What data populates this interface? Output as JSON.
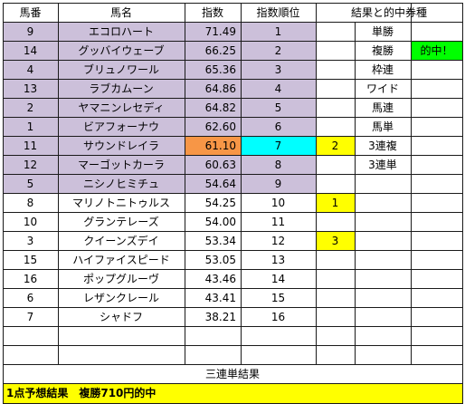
{
  "colors": {
    "border": "#1a1a1a",
    "top_row_highlight": "#ccc0da",
    "index_highlight": "#f79646",
    "rank_highlight": "#00ffff",
    "pick_marker": "#ffff00",
    "hit_badge": "#00ff00",
    "footer_bar": "#ffff00"
  },
  "header": {
    "number": "馬番",
    "name": "馬名",
    "index": "指数",
    "index_rank": "指数順位",
    "results": "結果と的中券種"
  },
  "horses": [
    {
      "number": "9",
      "name": "エコロハート",
      "index": "71.49",
      "rank": "1",
      "pick": "",
      "highlight": true
    },
    {
      "number": "14",
      "name": "グッバイウェーブ",
      "index": "66.25",
      "rank": "2",
      "pick": "",
      "highlight": true
    },
    {
      "number": "4",
      "name": "ブリュノワール",
      "index": "65.36",
      "rank": "3",
      "pick": "",
      "highlight": true
    },
    {
      "number": "13",
      "name": "ラブカムーン",
      "index": "64.86",
      "rank": "4",
      "pick": "",
      "highlight": true
    },
    {
      "number": "2",
      "name": "ヤマニンレセディ",
      "index": "64.82",
      "rank": "5",
      "pick": "",
      "highlight": true
    },
    {
      "number": "1",
      "name": "ビアフォーナウ",
      "index": "62.60",
      "rank": "6",
      "pick": "",
      "highlight": true
    },
    {
      "number": "11",
      "name": "サウンドレイラ",
      "index": "61.10",
      "rank": "7",
      "pick": "2",
      "highlight": true,
      "special": true
    },
    {
      "number": "12",
      "name": "マーゴットカーラ",
      "index": "60.63",
      "rank": "8",
      "pick": "",
      "highlight": true
    },
    {
      "number": "5",
      "name": "ニシノヒミチュ",
      "index": "54.64",
      "rank": "9",
      "pick": "",
      "highlight": true
    },
    {
      "number": "8",
      "name": "マリノトニトゥルス",
      "index": "54.25",
      "rank": "10",
      "pick": "1",
      "highlight": false
    },
    {
      "number": "10",
      "name": "グランテレーズ",
      "index": "54.00",
      "rank": "11",
      "pick": "",
      "highlight": false
    },
    {
      "number": "3",
      "name": "クイーンズデイ",
      "index": "53.34",
      "rank": "12",
      "pick": "3",
      "highlight": false
    },
    {
      "number": "15",
      "name": "ハイファイスピード",
      "index": "53.05",
      "rank": "13",
      "pick": "",
      "highlight": false
    },
    {
      "number": "16",
      "name": "ポップグルーヴ",
      "index": "43.46",
      "rank": "14",
      "pick": "",
      "highlight": false
    },
    {
      "number": "6",
      "name": "レザンクレール",
      "index": "43.41",
      "rank": "15",
      "pick": "",
      "highlight": false
    },
    {
      "number": "7",
      "name": "シャドフ",
      "index": "38.21",
      "rank": "16",
      "pick": "",
      "highlight": false
    }
  ],
  "bet_types": [
    {
      "label": "単勝",
      "result": ""
    },
    {
      "label": "複勝",
      "result": "的中！"
    },
    {
      "label": "枠連",
      "result": ""
    },
    {
      "label": "ワイド",
      "result": ""
    },
    {
      "label": "馬連",
      "result": ""
    },
    {
      "label": "馬単",
      "result": ""
    },
    {
      "label": "3連複",
      "result": ""
    },
    {
      "label": "3連単",
      "result": ""
    }
  ],
  "trifecta_result_label": "三連単結果",
  "footer": "1点予想結果　複勝710円的中"
}
